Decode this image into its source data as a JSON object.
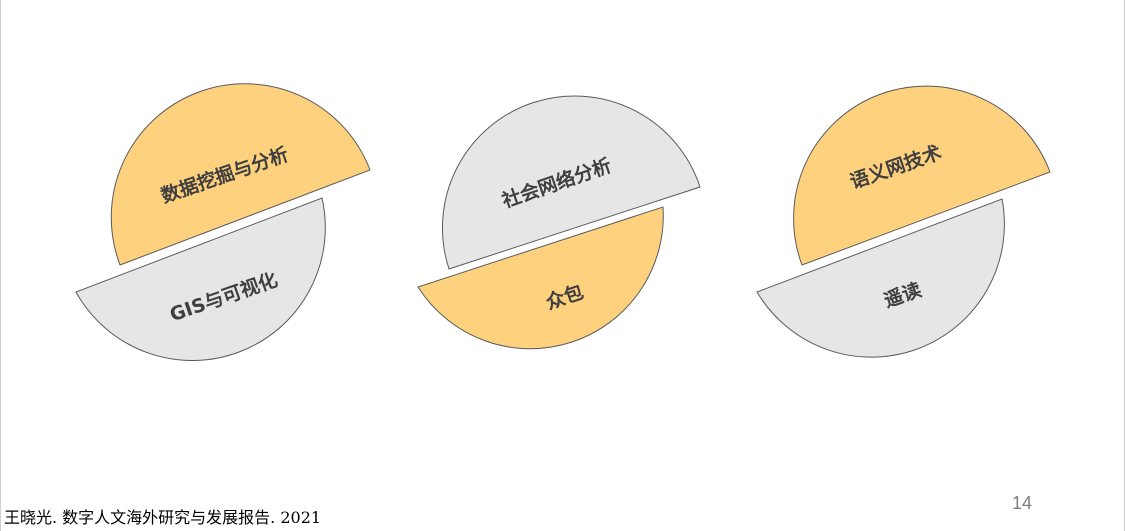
{
  "groups": [
    {
      "top": {
        "label": "数据挖掘与分析",
        "color": "#fdd17e"
      },
      "bottom": {
        "label": "GIS与可视化",
        "color": "#e6e6e6"
      }
    },
    {
      "top": {
        "label": "社会网络分析",
        "color": "#e6e6e6"
      },
      "bottom": {
        "label": "众包",
        "color": "#fdd17e"
      }
    },
    {
      "top": {
        "label": "语义网技术",
        "color": "#fdd17e"
      },
      "bottom": {
        "label": "遥读",
        "color": "#e6e6e6"
      }
    }
  ],
  "footer": {
    "citation": "王晓光. 数字人文海外研究与发展报告. 2021",
    "page_number": "14"
  }
}
